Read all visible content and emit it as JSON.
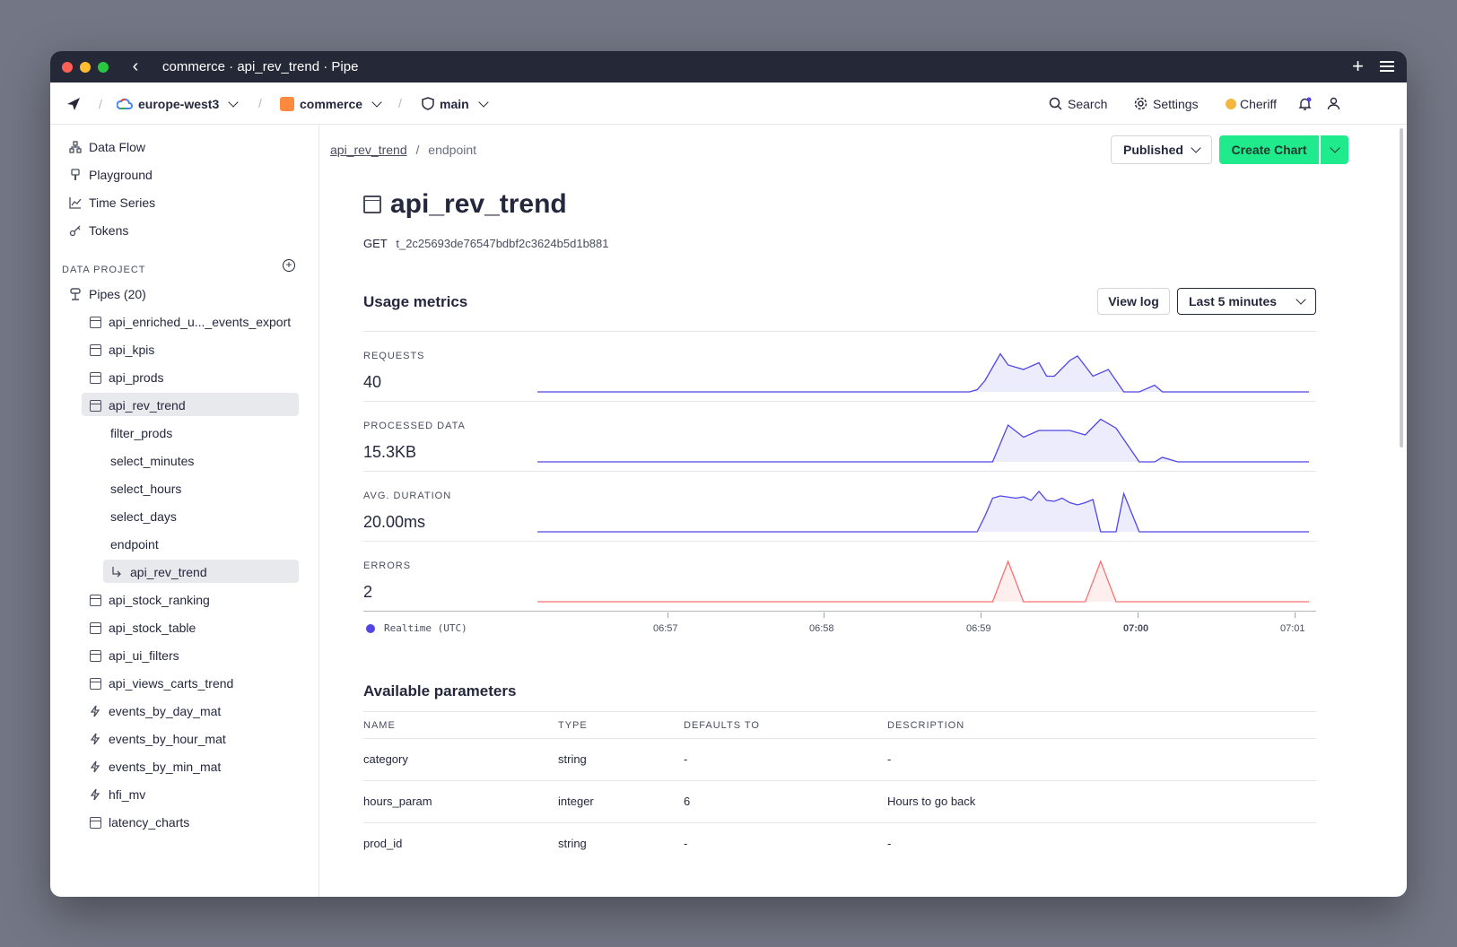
{
  "window": {
    "title": "commerce · api_rev_trend · Pipe"
  },
  "topbar": {
    "region": "europe-west3",
    "workspace": "commerce",
    "branch": "main",
    "search_label": "Search",
    "settings_label": "Settings",
    "user_label": "Cheriff"
  },
  "sidebar": {
    "nav": [
      {
        "label": "Data Flow",
        "icon": "data-flow-icon"
      },
      {
        "label": "Playground",
        "icon": "playground-icon"
      },
      {
        "label": "Time Series",
        "icon": "time-series-icon"
      },
      {
        "label": "Tokens",
        "icon": "key-icon"
      }
    ],
    "section_label": "DATA PROJECT",
    "pipes_label": "Pipes (20)",
    "pipes": [
      {
        "label": "api_enriched_u..._events_export",
        "icon": "pipe-icon"
      },
      {
        "label": "api_kpis",
        "icon": "pipe-icon"
      },
      {
        "label": "api_prods",
        "icon": "pipe-icon"
      },
      {
        "label": "api_rev_trend",
        "icon": "pipe-icon",
        "selected": true
      },
      {
        "label": "filter_prods",
        "icon": "none"
      },
      {
        "label": "select_minutes",
        "icon": "none"
      },
      {
        "label": "select_hours",
        "icon": "none"
      },
      {
        "label": "select_days",
        "icon": "none"
      },
      {
        "label": "endpoint",
        "icon": "none"
      },
      {
        "label": "api_rev_trend",
        "icon": "return-arrow-icon",
        "selected": true
      },
      {
        "label": "api_stock_ranking",
        "icon": "pipe-icon"
      },
      {
        "label": "api_stock_table",
        "icon": "pipe-icon"
      },
      {
        "label": "api_ui_filters",
        "icon": "pipe-icon"
      },
      {
        "label": "api_views_carts_trend",
        "icon": "pipe-icon"
      },
      {
        "label": "events_by_day_mat",
        "icon": "bolt-icon"
      },
      {
        "label": "events_by_hour_mat",
        "icon": "bolt-icon"
      },
      {
        "label": "events_by_min_mat",
        "icon": "bolt-icon"
      },
      {
        "label": "hfi_mv",
        "icon": "bolt-icon"
      },
      {
        "label": "latency_charts",
        "icon": "pipe-icon"
      }
    ]
  },
  "main": {
    "breadcrumb": {
      "link": "api_rev_trend",
      "current": "endpoint"
    },
    "published_label": "Published",
    "create_chart_label": "Create Chart",
    "title": "api_rev_trend",
    "method": "GET",
    "token": "t_2c25693de76547bdbf2c3624b5d1b881",
    "usage_title": "Usage metrics",
    "view_log_label": "View log",
    "range_label": "Last 5 minutes",
    "legend_label": "Realtime (UTC)",
    "accent_color": "#4f46e5",
    "error_color": "#f87171",
    "params_title": "Available parameters",
    "params_headers": [
      "NAME",
      "TYPE",
      "DEFAULTS TO",
      "DESCRIPTION"
    ],
    "params_rows": [
      [
        "category",
        "string",
        "-",
        "-"
      ],
      [
        "hours_param",
        "integer",
        "6",
        "Hours to go back"
      ],
      [
        "prod_id",
        "string",
        "-",
        "-"
      ]
    ]
  },
  "chart_data": {
    "type": "area",
    "x_ticks": [
      "06:57",
      "06:58",
      "06:59",
      "07:00",
      "07:01"
    ],
    "x_range": [
      "06:56:10",
      "07:01:05"
    ],
    "series": [
      {
        "name": "REQUESTS",
        "value": "40",
        "x": [
          0,
          0.56,
          0.57,
          0.58,
          0.6,
          0.61,
          0.63,
          0.65,
          0.66,
          0.67,
          0.69,
          0.7,
          0.72,
          0.74,
          0.76,
          0.78,
          0.8,
          0.81,
          0.83,
          1.0
        ],
        "y": [
          0,
          0,
          0.05,
          0.25,
          0.85,
          0.6,
          0.5,
          0.65,
          0.35,
          0.35,
          0.7,
          0.8,
          0.35,
          0.5,
          0,
          0,
          0.15,
          0,
          0,
          0
        ]
      },
      {
        "name": "PROCESSED DATA",
        "value": "15.3KB",
        "x": [
          0,
          0.57,
          0.59,
          0.61,
          0.63,
          0.65,
          0.69,
          0.71,
          0.73,
          0.75,
          0.78,
          0.8,
          0.81,
          0.83,
          1.0
        ],
        "y": [
          0,
          0,
          0,
          0.82,
          0.55,
          0.7,
          0.7,
          0.6,
          0.95,
          0.75,
          0,
          0,
          0.1,
          0,
          0
        ],
        "note": ""
      },
      {
        "name": "AVG. DURATION",
        "value": "20.00ms",
        "x": [
          0,
          0.56,
          0.57,
          0.58,
          0.59,
          0.6,
          0.62,
          0.63,
          0.64,
          0.65,
          0.66,
          0.67,
          0.68,
          0.69,
          0.7,
          0.71,
          0.72,
          0.73,
          0.74,
          0.75,
          0.76,
          0.78,
          0.8,
          0.82,
          1.0
        ],
        "y": [
          0,
          0,
          0,
          0.35,
          0.75,
          0.8,
          0.75,
          0.78,
          0.7,
          0.9,
          0.7,
          0.68,
          0.75,
          0.65,
          0.6,
          0.65,
          0.72,
          0,
          0,
          0,
          0.85,
          0,
          0,
          0,
          0
        ]
      },
      {
        "name": "ERRORS",
        "value": "2",
        "x": [
          0,
          0.59,
          0.61,
          0.63,
          0.71,
          0.73,
          0.75,
          1.0
        ],
        "y": [
          0,
          0,
          0.9,
          0,
          0,
          0.9,
          0,
          0
        ]
      }
    ]
  }
}
